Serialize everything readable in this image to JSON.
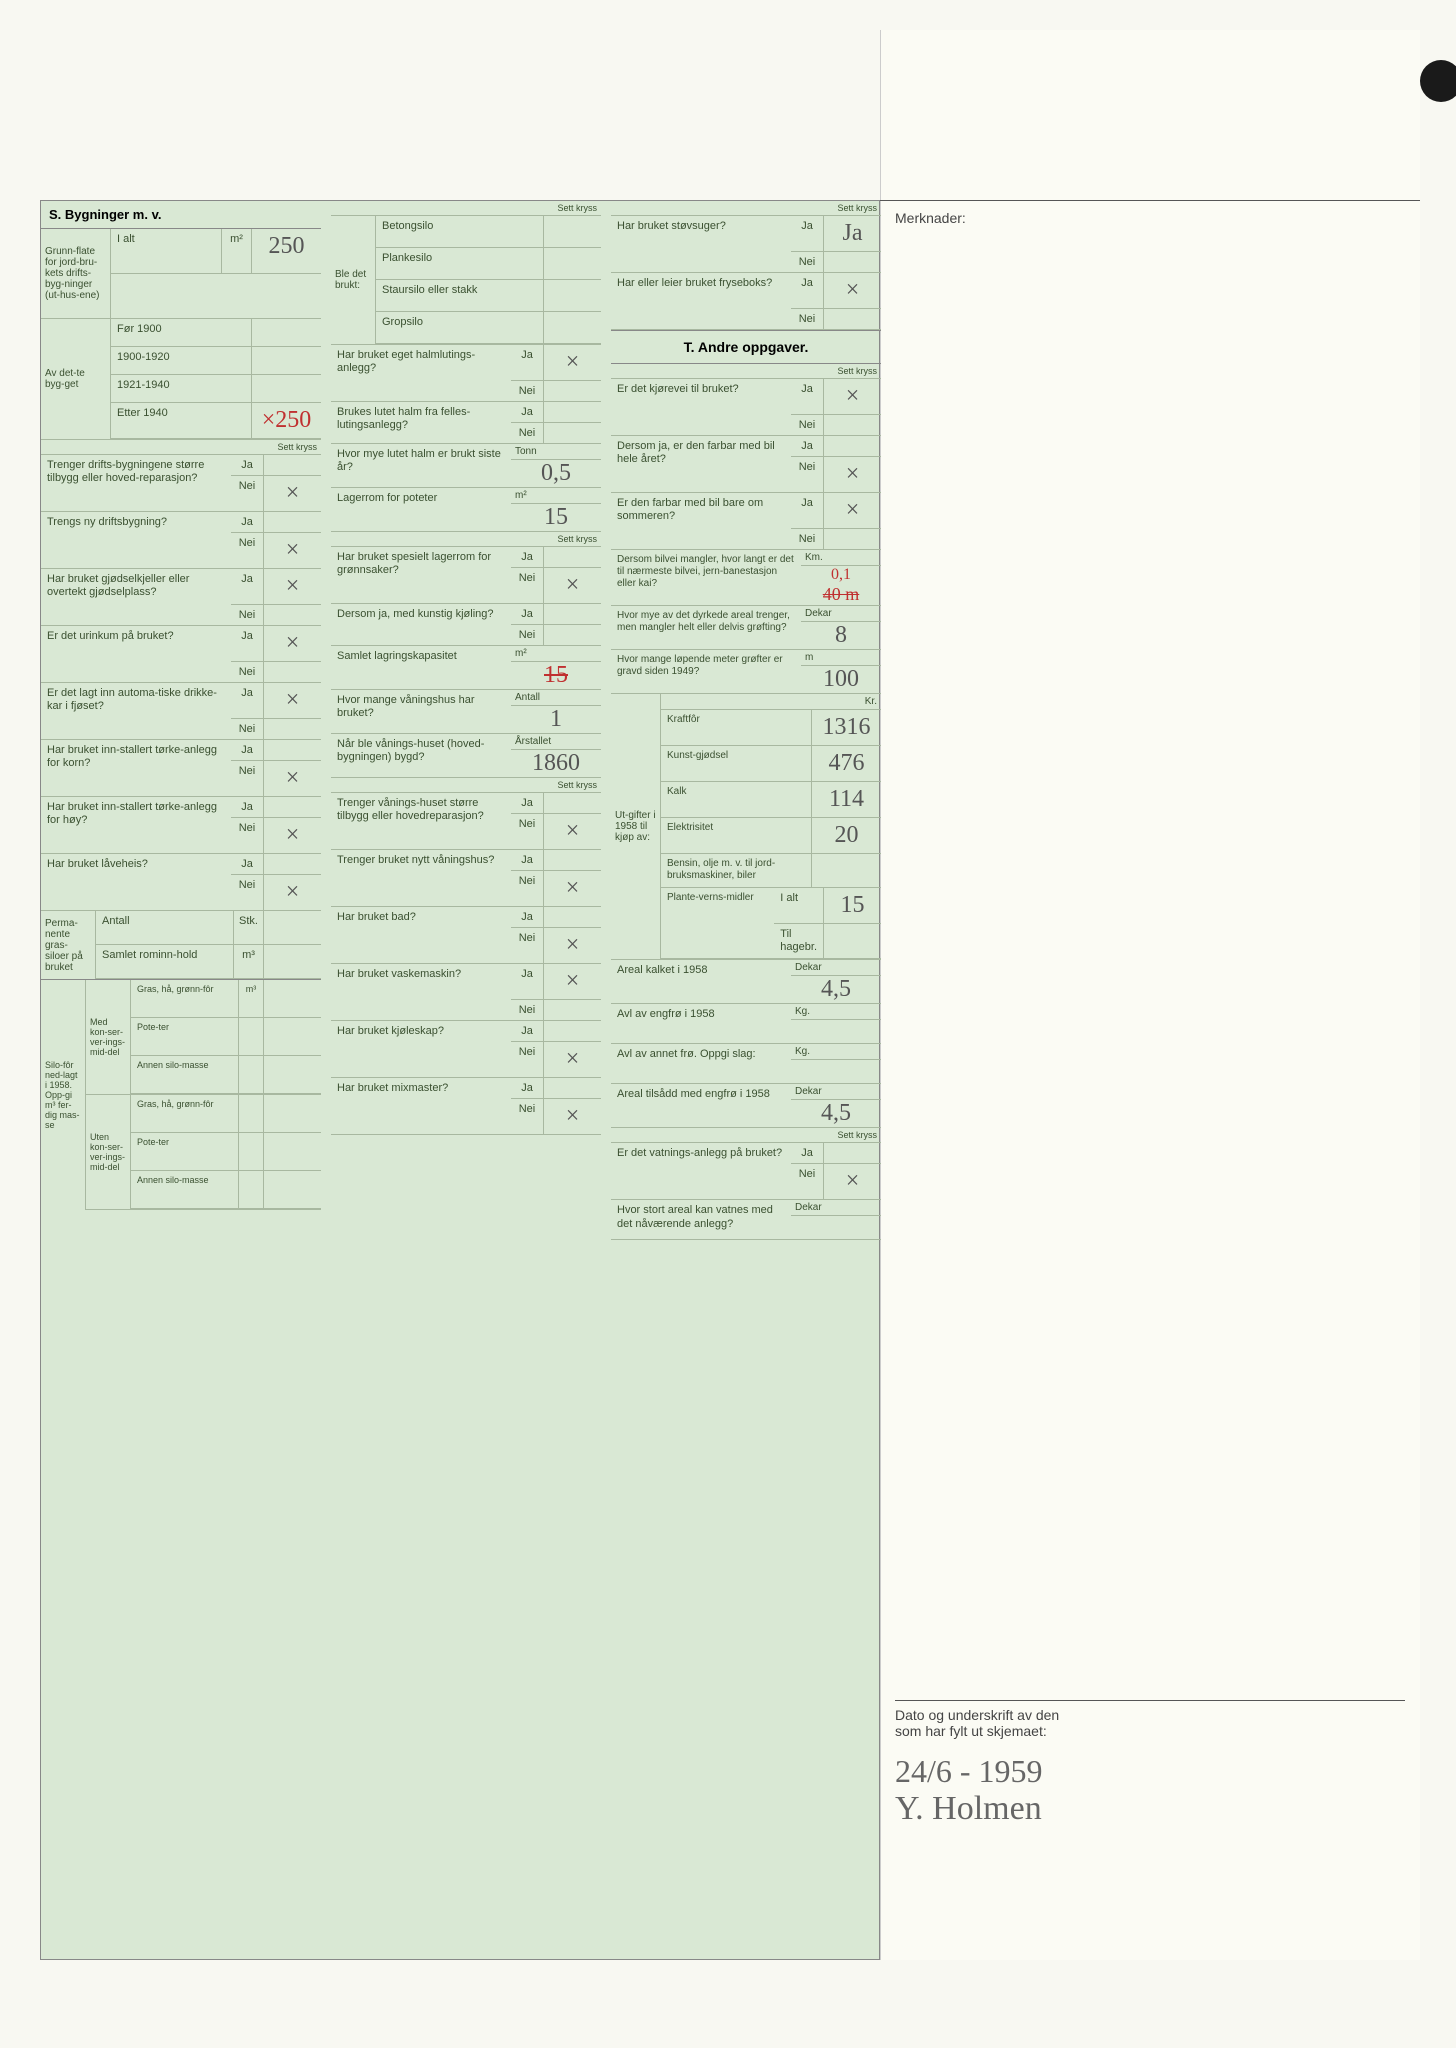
{
  "merknader_label": "Merknader:",
  "sig_label1": "Dato og underskrift av den",
  "sig_label2": "som har fylt ut skjemaet:",
  "sig_date": "24/6 - 1959",
  "sig_name": "Y. Holmen",
  "sectionS_title": "S. Bygninger m. v.",
  "sectionT_title": "T. Andre oppgaver.",
  "sett_kryss": "Sett kryss",
  "grunnflate": {
    "label": "Grunn-flate for jord-bru-kets drifts-byg-ninger (ut-hus-ene)",
    "ialt_label": "I alt",
    "unit": "m²",
    "ialt_value": "250",
    "avdet_label": "Av det-te byg-get",
    "periods": [
      {
        "label": "Før 1900",
        "val": ""
      },
      {
        "label": "1900-1920",
        "val": ""
      },
      {
        "label": "1921-1940",
        "val": ""
      },
      {
        "label": "Etter 1940",
        "val": "×250"
      }
    ]
  },
  "q_left": [
    {
      "q": "Trenger drifts-bygningene større tilbygg eller hoved-reparasjon?",
      "ja": "",
      "nei": "×"
    },
    {
      "q": "Trengs ny driftsbygning?",
      "ja": "",
      "nei": "×"
    },
    {
      "q": "Har bruket gjødselkjeller eller overtekt gjødselplass?",
      "ja": "×",
      "nei": ""
    },
    {
      "q": "Er det urinkum på bruket?",
      "ja": "×",
      "nei": ""
    },
    {
      "q": "Er det lagt inn automa-tiske drikke-kar i fjøset?",
      "ja": "×",
      "nei": ""
    },
    {
      "q": "Har bruket inn-stallert tørke-anlegg for korn?",
      "ja": "",
      "nei": "×"
    },
    {
      "q": "Har bruket inn-stallert tørke-anlegg for høy?",
      "ja": "",
      "nei": "×"
    },
    {
      "q": "Har bruket låveheis?",
      "ja": "",
      "nei": "×"
    }
  ],
  "perm_silo": {
    "title": "Perma-nente gras-siloer på bruket",
    "rows": [
      {
        "l": "Antall",
        "u": "Stk.",
        "v": ""
      },
      {
        "l": "Samlet rominn-hold",
        "u": "m³",
        "v": ""
      }
    ]
  },
  "silofor": {
    "title": "Silo-fôr ned-lagt i 1958. Opp-gi m³ fer-dig mas-se",
    "groups": [
      {
        "g": "Med kon-ser-ver-ings-mid-del",
        "items": [
          {
            "l": "Gras, hå, grønn-fôr",
            "u": "m³",
            "v": ""
          },
          {
            "l": "Pote-ter",
            "v": ""
          },
          {
            "l": "Annen silo-masse",
            "v": ""
          }
        ]
      },
      {
        "g": "Uten kon-ser-ver-ings-mid-del",
        "items": [
          {
            "l": "Gras, hå, grønn-fôr",
            "v": ""
          },
          {
            "l": "Pote-ter",
            "v": ""
          },
          {
            "l": "Annen silo-masse",
            "v": ""
          }
        ]
      }
    ]
  },
  "ble_det_brukt": {
    "label": "Ble det brukt:",
    "items": [
      "Betongsilo",
      "Plankesilo",
      "Staursilo eller stakk",
      "Gropsilo"
    ]
  },
  "q_mid": [
    {
      "q": "Har bruket eget halmlutings-anlegg?",
      "ja": "×",
      "nei": ""
    },
    {
      "q": "Brukes lutet halm fra felles-lutingsanlegg?",
      "ja": "",
      "nei": ""
    }
  ],
  "lutet_halm": {
    "q": "Hvor mye lutet halm er brukt siste år?",
    "unit": "Tonn",
    "v": "0,5"
  },
  "lager_potet": {
    "q": "Lagerrom for poteter",
    "unit": "m²",
    "v": "15"
  },
  "lager_gronn": {
    "q": "Har bruket spesielt lagerrom for grønnsaker?",
    "ja": "",
    "nei": "×"
  },
  "kjoling": {
    "q": "Dersom ja, med kunstig kjøling?",
    "ja": "",
    "nei": ""
  },
  "lagringskap": {
    "q": "Samlet lagringskapasitet",
    "unit": "m²",
    "v": "15",
    "struck": true
  },
  "vaningshus_n": {
    "q": "Hvor mange våningshus har bruket?",
    "unit": "Antall",
    "v": "1"
  },
  "vaning_bygd": {
    "q": "Når ble vånings-huset (hoved-bygningen) bygd?",
    "unit": "Årstallet",
    "v": "1860"
  },
  "vaning_rep": {
    "q": "Trenger vånings-huset større tilbygg eller hovedreparasjon?",
    "ja": "",
    "nei": "×"
  },
  "nytt_vaning": {
    "q": "Trenger bruket nytt våningshus?",
    "ja": "",
    "nei": "×"
  },
  "bad": {
    "q": "Har bruket bad?",
    "ja": "",
    "nei": "×"
  },
  "vaskemaskin": {
    "q": "Har bruket vaskemaskin?",
    "ja": "×",
    "nei": ""
  },
  "kjoleskap": {
    "q": "Har bruket kjøleskap?",
    "ja": "",
    "nei": "×"
  },
  "mixmaster": {
    "q": "Har bruket mixmaster?",
    "ja": "",
    "nei": "×"
  },
  "stovsuger": {
    "q": "Har bruket støvsuger?",
    "ja": "Ja",
    "nei": ""
  },
  "fryseboks": {
    "q": "Har eller leier bruket fryseboks?",
    "ja": "×",
    "nei": ""
  },
  "q_right_top": [
    {
      "q": "Er det kjørevei til bruket?",
      "ja": "×",
      "nei": ""
    },
    {
      "q": "Dersom ja, er den farbar med bil hele året?",
      "ja": "",
      "nei": "×"
    },
    {
      "q": "Er den farbar med bil bare om sommeren?",
      "ja": "×",
      "nei": ""
    }
  ],
  "bilvei_mangler": {
    "q": "Dersom bilvei mangler, hvor langt er det til nærmeste bilvei, jern-banestasjon eller kai?",
    "unit": "Km.",
    "v": "0,1",
    "struck": "40 m"
  },
  "grofting": {
    "q": "Hvor mye av det dyrkede areal trenger, men mangler helt eller delvis grøfting?",
    "unit": "Dekar",
    "v": "8"
  },
  "grofter_m": {
    "q": "Hvor mange løpende meter grøfter er gravd siden 1949?",
    "unit": "m",
    "v": "100"
  },
  "utgifter": {
    "label": "Ut-gifter i 1958 til kjøp av:",
    "unit": "Kr.",
    "rows": [
      {
        "l": "Kraftfôr",
        "v": "1316"
      },
      {
        "l": "Kunst-gjødsel",
        "v": "476"
      },
      {
        "l": "Kalk",
        "v": "114"
      },
      {
        "l": "Elektrisitet",
        "v": "20"
      },
      {
        "l": "Bensin, olje m. v. til jord-bruksmaskiner, biler",
        "v": ""
      }
    ],
    "plante": {
      "l": "Plante-verns-midler",
      "ialt": "I alt",
      "ialt_v": "15",
      "hage": "Til hagebr.",
      "hage_v": ""
    }
  },
  "areal_kalket": {
    "q": "Areal kalket i 1958",
    "unit": "Dekar",
    "v": "4,5"
  },
  "avl_engfro": {
    "q": "Avl av engfrø i 1958",
    "unit": "Kg.",
    "v": ""
  },
  "avl_annet": {
    "q": "Avl av annet frø. Oppgi slag:",
    "unit": "Kg.",
    "v": ""
  },
  "areal_tilsadd": {
    "q": "Areal tilsådd med engfrø i 1958",
    "unit": "Dekar",
    "v": "4,5"
  },
  "vatning": {
    "q": "Er det vatnings-anlegg på bruket?",
    "ja": "",
    "nei": "×"
  },
  "vatnes_areal": {
    "q": "Hvor stort areal kan vatnes med det nåværende anlegg?",
    "unit": "Dekar",
    "v": ""
  },
  "ja_label": "Ja",
  "nei_label": "Nei"
}
